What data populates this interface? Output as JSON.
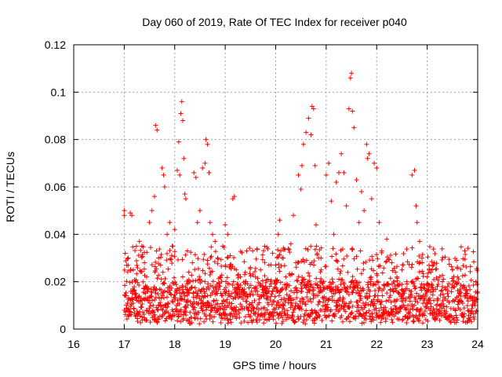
{
  "chart_data": {
    "type": "scatter",
    "title": "Day 060 of 2019, Rate Of TEC Index for receiver p040",
    "xlabel": "GPS time / hours",
    "ylabel": "ROTI / TECUs",
    "xlim": [
      16,
      24
    ],
    "ylim": [
      0,
      0.12
    ],
    "xticks": [
      "16",
      "17",
      "18",
      "19",
      "20",
      "21",
      "22",
      "23",
      "24"
    ],
    "yticks": [
      "0",
      "0.02",
      "0.04",
      "0.06",
      "0.08",
      "0.1",
      "0.12"
    ],
    "grid": true,
    "marker": "+",
    "series": [
      {
        "name": "ROTI",
        "color": "#ff0000",
        "points": [
          [
            17.0,
            0.05
          ],
          [
            17.0,
            0.048
          ],
          [
            17.02,
            0.032
          ],
          [
            17.05,
            0.027
          ],
          [
            17.08,
            0.03
          ],
          [
            17.12,
            0.049
          ],
          [
            17.15,
            0.048
          ],
          [
            17.18,
            0.025
          ],
          [
            17.22,
            0.02
          ],
          [
            17.3,
            0.037
          ],
          [
            17.35,
            0.035
          ],
          [
            17.4,
            0.028
          ],
          [
            17.5,
            0.045
          ],
          [
            17.55,
            0.05
          ],
          [
            17.6,
            0.056
          ],
          [
            17.62,
            0.086
          ],
          [
            17.65,
            0.084
          ],
          [
            17.68,
            0.03
          ],
          [
            17.72,
            0.027
          ],
          [
            17.75,
            0.068
          ],
          [
            17.78,
            0.065
          ],
          [
            17.8,
            0.06
          ],
          [
            17.85,
            0.04
          ],
          [
            17.9,
            0.045
          ],
          [
            17.95,
            0.035
          ],
          [
            18.0,
            0.042
          ],
          [
            18.05,
            0.067
          ],
          [
            18.08,
            0.079
          ],
          [
            18.1,
            0.065
          ],
          [
            18.12,
            0.091
          ],
          [
            18.14,
            0.096
          ],
          [
            18.16,
            0.088
          ],
          [
            18.18,
            0.072
          ],
          [
            18.2,
            0.057
          ],
          [
            18.22,
            0.055
          ],
          [
            18.25,
            0.033
          ],
          [
            18.3,
            0.02
          ],
          [
            18.38,
            0.066
          ],
          [
            18.42,
            0.064
          ],
          [
            18.45,
            0.045
          ],
          [
            18.5,
            0.05
          ],
          [
            18.55,
            0.068
          ],
          [
            18.6,
            0.07
          ],
          [
            18.62,
            0.08
          ],
          [
            18.65,
            0.078
          ],
          [
            18.68,
            0.066
          ],
          [
            18.7,
            0.045
          ],
          [
            18.75,
            0.04
          ],
          [
            18.8,
            0.037
          ],
          [
            18.85,
            0.03
          ],
          [
            18.9,
            0.022
          ],
          [
            18.95,
            0.035
          ],
          [
            19.0,
            0.044
          ],
          [
            19.05,
            0.04
          ],
          [
            19.1,
            0.031
          ],
          [
            19.15,
            0.055
          ],
          [
            19.18,
            0.056
          ],
          [
            19.22,
            0.025
          ],
          [
            19.3,
            0.022
          ],
          [
            19.4,
            0.02
          ],
          [
            19.5,
            0.026
          ],
          [
            19.6,
            0.022
          ],
          [
            19.7,
            0.025
          ],
          [
            19.8,
            0.018
          ],
          [
            19.9,
            0.02
          ],
          [
            20.0,
            0.027
          ],
          [
            20.05,
            0.04
          ],
          [
            20.08,
            0.046
          ],
          [
            20.1,
            0.033
          ],
          [
            20.15,
            0.03
          ],
          [
            20.2,
            0.022
          ],
          [
            20.3,
            0.036
          ],
          [
            20.35,
            0.048
          ],
          [
            20.4,
            0.028
          ],
          [
            20.45,
            0.065
          ],
          [
            20.5,
            0.059
          ],
          [
            20.52,
            0.069
          ],
          [
            20.55,
            0.078
          ],
          [
            20.6,
            0.083
          ],
          [
            20.65,
            0.089
          ],
          [
            20.7,
            0.082
          ],
          [
            20.72,
            0.094
          ],
          [
            20.75,
            0.093
          ],
          [
            20.78,
            0.069
          ],
          [
            20.8,
            0.044
          ],
          [
            20.85,
            0.03
          ],
          [
            20.9,
            0.025
          ],
          [
            20.95,
            0.02
          ],
          [
            21.0,
            0.065
          ],
          [
            21.05,
            0.07
          ],
          [
            21.1,
            0.054
          ],
          [
            21.15,
            0.04
          ],
          [
            21.2,
            0.062
          ],
          [
            21.25,
            0.066
          ],
          [
            21.3,
            0.074
          ],
          [
            21.35,
            0.066
          ],
          [
            21.4,
            0.052
          ],
          [
            21.45,
            0.093
          ],
          [
            21.48,
            0.106
          ],
          [
            21.5,
            0.108
          ],
          [
            21.52,
            0.092
          ],
          [
            21.55,
            0.085
          ],
          [
            21.6,
            0.063
          ],
          [
            21.65,
            0.045
          ],
          [
            21.7,
            0.058
          ],
          [
            21.75,
            0.05
          ],
          [
            21.8,
            0.078
          ],
          [
            21.82,
            0.072
          ],
          [
            21.85,
            0.074
          ],
          [
            21.9,
            0.055
          ],
          [
            21.95,
            0.07
          ],
          [
            22.0,
            0.068
          ],
          [
            22.05,
            0.045
          ],
          [
            22.1,
            0.033
          ],
          [
            22.2,
            0.038
          ],
          [
            22.3,
            0.028
          ],
          [
            22.4,
            0.022
          ],
          [
            22.5,
            0.025
          ],
          [
            22.6,
            0.019
          ],
          [
            22.7,
            0.065
          ],
          [
            22.75,
            0.067
          ],
          [
            22.78,
            0.052
          ],
          [
            22.8,
            0.045
          ],
          [
            22.85,
            0.037
          ],
          [
            22.9,
            0.028
          ],
          [
            23.0,
            0.022
          ],
          [
            23.1,
            0.025
          ],
          [
            23.2,
            0.018
          ],
          [
            23.3,
            0.02
          ],
          [
            23.4,
            0.015
          ],
          [
            23.5,
            0.025
          ],
          [
            23.6,
            0.022
          ],
          [
            23.7,
            0.018
          ],
          [
            23.8,
            0.015
          ],
          [
            23.9,
            0.012
          ],
          [
            23.95,
            0.01
          ]
        ],
        "baseline_band": [
          0.002,
          0.018
        ]
      }
    ]
  }
}
